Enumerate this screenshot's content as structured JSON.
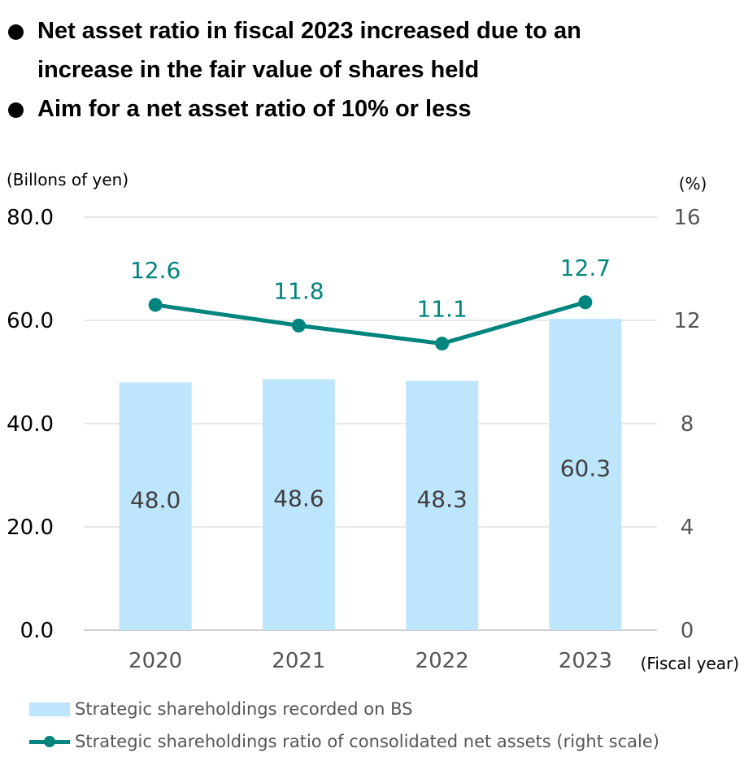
{
  "bullets": [
    {
      "line1": "Net asset ratio in fiscal 2023 increased due to an",
      "line2": "increase in the fair value of shares held"
    },
    {
      "line1": "Aim for a net asset ratio of 10% or less",
      "line2": ""
    }
  ],
  "chart_data": {
    "type": "bar+line",
    "categories": [
      "2020",
      "2021",
      "2022",
      "2023"
    ],
    "left_axis": {
      "unit_label": "(Billons of yen)",
      "range": [
        0,
        80
      ],
      "ticks": [
        "0.0",
        "20.0",
        "40.0",
        "60.0",
        "80.0"
      ]
    },
    "right_axis": {
      "unit_label": "(%)",
      "range": [
        0,
        16
      ],
      "ticks": [
        "0",
        "4",
        "8",
        "12",
        "16"
      ]
    },
    "xlabel": "(Fiscal year)",
    "grid": true,
    "series": [
      {
        "name": "Strategic shareholdings recorded on BS",
        "type": "bar",
        "axis": "left",
        "values": [
          48.0,
          48.6,
          48.3,
          60.3
        ],
        "labels": [
          "48.0",
          "48.6",
          "48.3",
          "60.3"
        ],
        "color": "#bde5fb"
      },
      {
        "name": "Strategic shareholdings ratio of consolidated net assets (right scale)",
        "type": "line",
        "axis": "right",
        "values": [
          12.6,
          11.8,
          11.1,
          12.7
        ],
        "labels": [
          "12.6",
          "11.8",
          "11.1",
          "12.7"
        ],
        "color": "#00847e"
      }
    ],
    "legend_position": "bottom-left"
  }
}
